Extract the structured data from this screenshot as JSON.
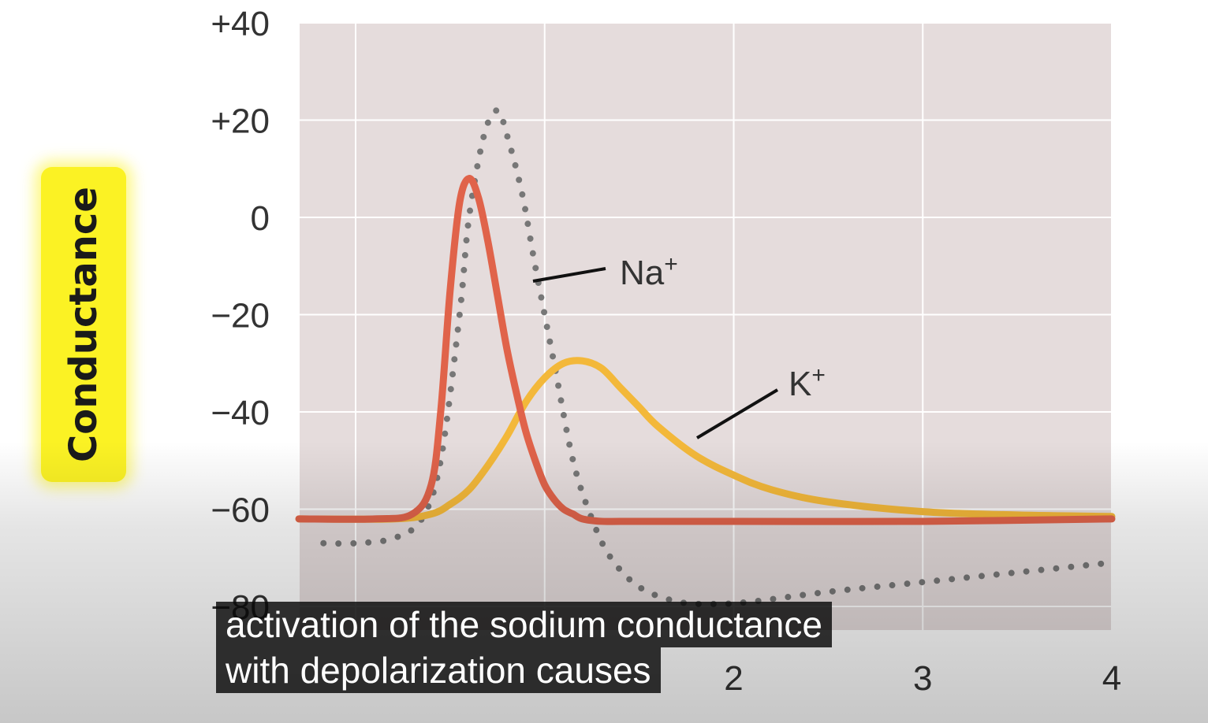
{
  "chart_data": {
    "type": "line",
    "ylabel": "Conductance",
    "xlabel": "",
    "xlim": [
      -0.3,
      4
    ],
    "ylim": [
      -82,
      42
    ],
    "x_ticks": [
      0,
      1,
      2,
      3,
      4
    ],
    "x_tick_labels": [
      "",
      "",
      "2",
      "3",
      "4"
    ],
    "y_ticks": [
      40,
      20,
      0,
      -20,
      -40,
      -60,
      -80
    ],
    "y_tick_labels": [
      "+40",
      "+20",
      "0",
      "−20",
      "−40",
      "−60",
      "−80"
    ],
    "grid": true,
    "series": [
      {
        "name": "Na+",
        "style": "solid",
        "color": "#e0634a",
        "x": [
          -0.3,
          0.1,
          0.3,
          0.4,
          0.45,
          0.5,
          0.55,
          0.6,
          0.65,
          0.7,
          0.75,
          0.8,
          0.85,
          0.9,
          0.95,
          1.0,
          1.05,
          1.1,
          1.15,
          1.2,
          1.3,
          1.4,
          1.6,
          2.0,
          3.0,
          4.0
        ],
        "y": [
          -62,
          -62,
          -61,
          -55,
          -40,
          -15,
          3,
          8,
          4,
          -5,
          -16,
          -27,
          -36,
          -44,
          -50,
          -55,
          -58,
          -60,
          -61,
          -62,
          -62.5,
          -62.5,
          -62.5,
          -62.5,
          -62.5,
          -62
        ]
      },
      {
        "name": "K+",
        "style": "solid",
        "color": "#f3b83a",
        "x": [
          -0.3,
          0.2,
          0.4,
          0.5,
          0.6,
          0.7,
          0.8,
          0.9,
          1.0,
          1.1,
          1.2,
          1.3,
          1.4,
          1.5,
          1.6,
          1.8,
          2.0,
          2.2,
          2.5,
          3.0,
          3.5,
          4.0
        ],
        "y": [
          -62,
          -62,
          -61,
          -59,
          -56,
          -51,
          -45,
          -38,
          -33,
          -30,
          -29.5,
          -31,
          -35,
          -39,
          -43,
          -49,
          -53,
          -56,
          -58.5,
          -60.5,
          -61.2,
          -61.5
        ]
      },
      {
        "name": "",
        "style": "dotted",
        "color": "#777777",
        "x": [
          -0.17,
          0.0,
          0.2,
          0.35,
          0.45,
          0.55,
          0.6,
          0.68,
          0.75,
          0.8,
          0.88,
          0.95,
          1.05,
          1.15,
          1.25,
          1.35,
          1.5,
          1.7,
          1.9,
          2.1,
          2.5,
          3.0,
          3.5,
          4.0
        ],
        "y": [
          -67,
          -67,
          -66,
          -62,
          -50,
          -20,
          0,
          17,
          22,
          17,
          5,
          -10,
          -30,
          -50,
          -62,
          -70,
          -76,
          -79,
          -79.5,
          -79,
          -77,
          -75,
          -73,
          -71
        ]
      }
    ],
    "annotations": [
      {
        "text": "Na",
        "sup": "+"
      },
      {
        "text": "K",
        "sup": "+"
      }
    ]
  },
  "caption": {
    "line1": "activation of the sodium conductance",
    "line2": "with depolarization causes"
  }
}
